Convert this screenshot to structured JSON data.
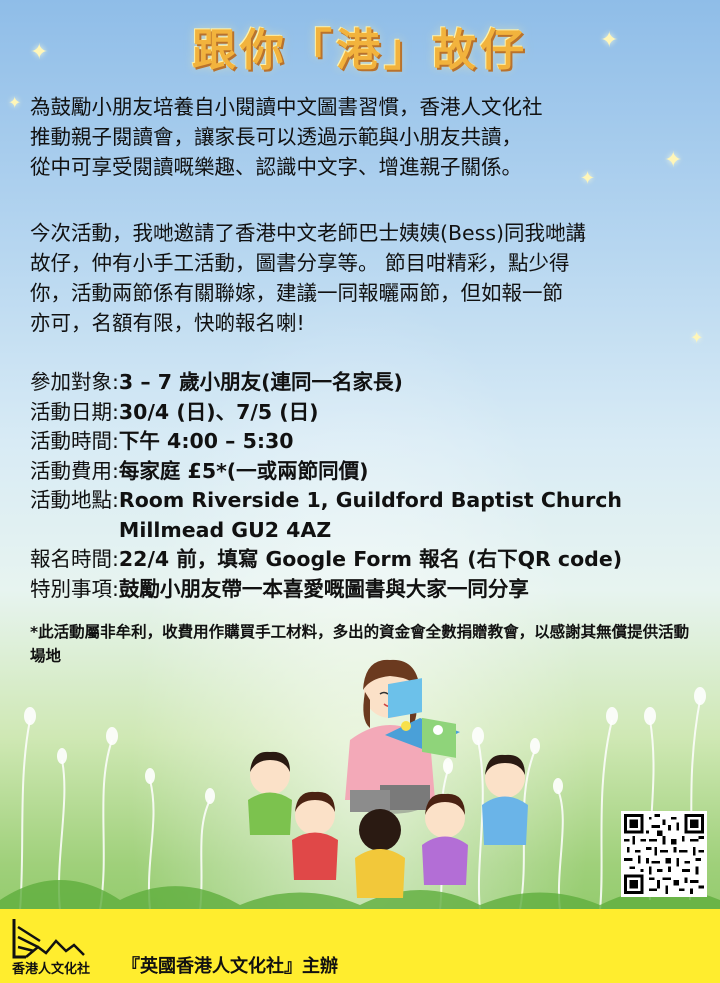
{
  "title": "跟你「港」故仔",
  "intro_paragraph": "為鼓勵小朋友培養自小閱讀中文圖書習慣，香港人文化社\n推動親子閱讀會，讓家長可以透過示範與小朋友共讀，\n從中可享受閱讀嘅樂趣、認識中文字、增進親子關係。",
  "activity_paragraph": "今次活動，我哋邀請了香港中文老師巴士姨姨(Bess)同我哋講\n故仔，仲有小手工活動，圖書分享等。 節目咁精彩，點少得\n你，活動兩節係有關聯嫁，建議一同報曬兩節，但如報一節\n亦可，名額有限，快啲報名喇!",
  "details": [
    {
      "label": "參加對象:",
      "value": "3 – 7 歲小朋友(連同一名家長)"
    },
    {
      "label": "活動日期:",
      "value": "30/4 (日)、7/5 (日)"
    },
    {
      "label": "活動時間:",
      "value": "下午 4:00 – 5:30"
    },
    {
      "label": "活動費用:",
      "value": "每家庭 £5*(一或兩節同價)"
    },
    {
      "label": "活動地點:",
      "value": "Room Riverside 1, Guildford Baptist Church Millmead GU2 4AZ"
    },
    {
      "label": "報名時間:",
      "value": "22/4 前，填寫 Google Form 報名 (右下QR code)"
    },
    {
      "label": "特別事項:",
      "value": "鼓勵小朋友帶一本喜愛嘅圖書與大家一同分享"
    }
  ],
  "footnote": "*此活動屬非牟利，收費用作購買手工材料，多出的資金會全數捐贈教會，以感謝其無償提供活動場地",
  "footer": {
    "logo_text": "香港人文化社",
    "organizer": "『英國香港人文化社』主辦",
    "background_color": "#ffed2e"
  },
  "qr_code_icon": "qr-code-icon",
  "illustration_icon": "storytime-illustration-icon",
  "colors": {
    "title": "#f2b33d",
    "title_shadow": "#b9722c"
  }
}
